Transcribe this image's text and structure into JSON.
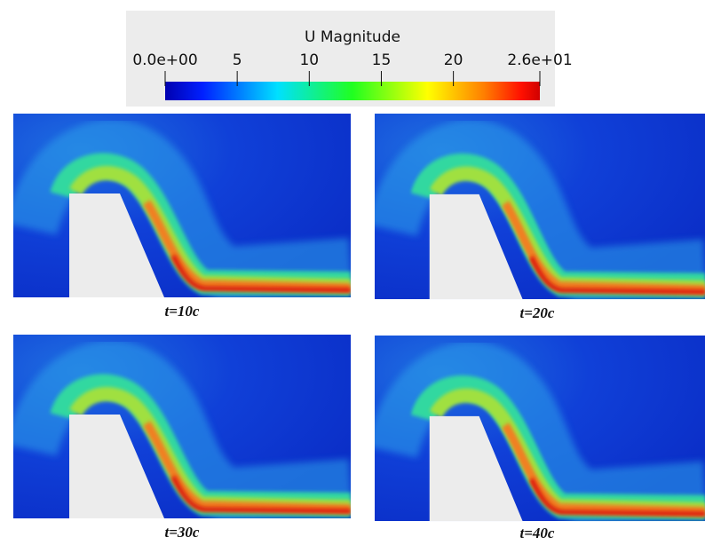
{
  "colorbar": {
    "title": "U Magnitude",
    "ticks": [
      {
        "value": 0,
        "label": "0.0e+00"
      },
      5,
      10,
      15,
      20,
      {
        "value": 26,
        "label": "2.6e+01"
      }
    ]
  },
  "panels": [
    {
      "caption": "t=10c"
    },
    {
      "caption": "t=20c"
    },
    {
      "caption": "t=30c"
    },
    {
      "caption": "t=40c"
    }
  ]
}
